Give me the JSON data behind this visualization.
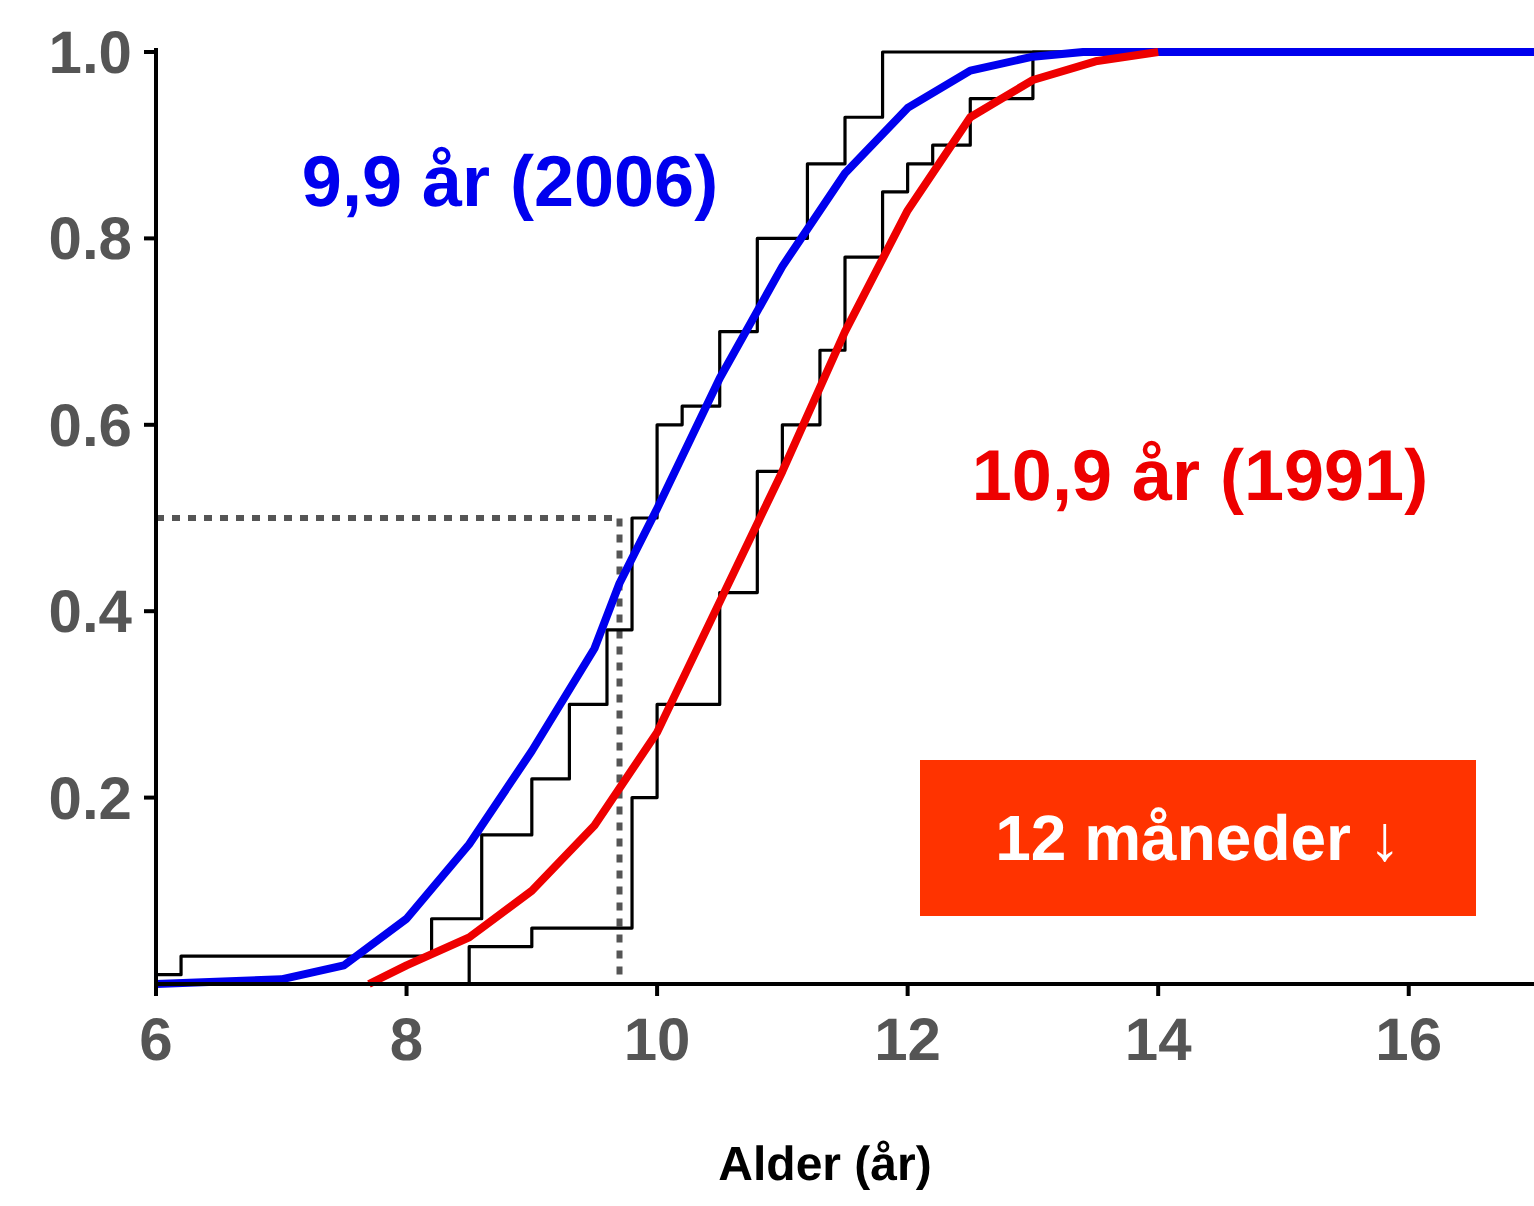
{
  "chart_data": {
    "type": "line",
    "xlabel": "Alder (år)",
    "xlim": [
      6,
      17
    ],
    "xticks": [
      6,
      8,
      10,
      12,
      14,
      16
    ],
    "ylim": [
      0,
      1.0
    ],
    "yticks": [
      {
        "value": 0.2,
        "label": "0.2"
      },
      {
        "value": 0.4,
        "label": "0.4"
      },
      {
        "value": 0.6,
        "label": "0.6"
      },
      {
        "value": 0.8,
        "label": "0.8"
      },
      {
        "value": 1.0,
        "label": "1.0"
      }
    ],
    "marker": "none",
    "annotations": [
      "12 måneder ↓"
    ],
    "series": [
      {
        "type": "line",
        "line_style": "dotted",
        "color": "#555555",
        "x": [
          6,
          9.7,
          9.7
        ],
        "values": [
          0.5,
          0.5,
          0
        ]
      },
      {
        "type": "step",
        "color": "#000000",
        "x": [
          6,
          6.2,
          7.8,
          8.2,
          8.6,
          9.0,
          9.3,
          9.6,
          9.8,
          10.0,
          10.2,
          10.5,
          10.8,
          11.2,
          11.5,
          11.8,
          12.0,
          13.4,
          17
        ],
        "values": [
          0.01,
          0.03,
          0.03,
          0.07,
          0.16,
          0.22,
          0.3,
          0.38,
          0.5,
          0.6,
          0.62,
          0.7,
          0.8,
          0.88,
          0.93,
          1.0,
          1.0,
          1.0,
          1.0
        ]
      },
      {
        "type": "step",
        "color": "#000000",
        "x": [
          6,
          7.8,
          8.5,
          9.0,
          9.8,
          10.0,
          10.5,
          10.8,
          11.0,
          11.3,
          11.5,
          11.8,
          12.0,
          12.2,
          12.5,
          13.0,
          17
        ],
        "values": [
          0,
          0,
          0.04,
          0.06,
          0.2,
          0.3,
          0.42,
          0.55,
          0.6,
          0.68,
          0.78,
          0.85,
          0.88,
          0.9,
          0.95,
          1.0,
          1.0
        ]
      },
      {
        "name": "9,9 år (2006)",
        "color": "#0000ee",
        "x": [
          6,
          7,
          7.5,
          8,
          8.5,
          9,
          9.5,
          9.7,
          10,
          10.5,
          11,
          11.5,
          12,
          12.5,
          13,
          13.4,
          17
        ],
        "values": [
          0,
          0.005,
          0.02,
          0.07,
          0.15,
          0.25,
          0.36,
          0.43,
          0.51,
          0.65,
          0.77,
          0.87,
          0.94,
          0.98,
          0.995,
          1.0,
          1.0
        ]
      },
      {
        "name": "10,9 år (1991)",
        "color": "#ee0000",
        "x": [
          7.7,
          8,
          8.5,
          9,
          9.5,
          10,
          10.5,
          11,
          11.5,
          12,
          12.5,
          13,
          13.5,
          14
        ],
        "values": [
          0,
          0.02,
          0.05,
          0.1,
          0.17,
          0.27,
          0.41,
          0.55,
          0.7,
          0.83,
          0.93,
          0.97,
          0.99,
          1.0
        ]
      }
    ]
  }
}
